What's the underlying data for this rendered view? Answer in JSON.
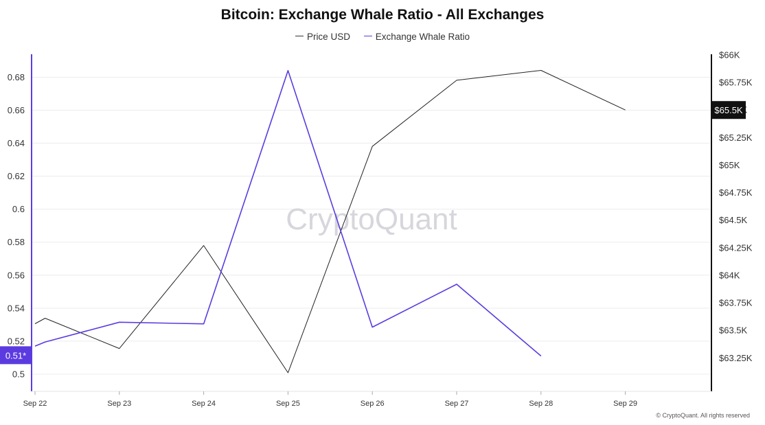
{
  "chart_data": {
    "type": "line",
    "title": "Bitcoin: Exchange Whale Ratio - All Exchanges",
    "categories": [
      "Sep 22",
      "Sep 23",
      "Sep 24",
      "Sep 25",
      "Sep 26",
      "Sep 27",
      "Sep 28",
      "Sep 29"
    ],
    "series": [
      {
        "name": "Price USD",
        "axis": "right",
        "color": "#222222",
        "points": [
          {
            "x": "Sep 22 00:00",
            "y": 63560
          },
          {
            "x": "Sep 22 12:00",
            "y": 63610
          },
          {
            "x": "Sep 23",
            "y": 63335
          },
          {
            "x": "Sep 24",
            "y": 64270
          },
          {
            "x": "Sep 25",
            "y": 63115
          },
          {
            "x": "Sep 26",
            "y": 65170
          },
          {
            "x": "Sep 27",
            "y": 65770
          },
          {
            "x": "Sep 28",
            "y": 65860
          },
          {
            "x": "Sep 29",
            "y": 65500
          }
        ]
      },
      {
        "name": "Exchange Whale Ratio",
        "axis": "left",
        "color": "#5b3be0",
        "points": [
          {
            "x": "Sep 22 00:00",
            "y": 0.517
          },
          {
            "x": "Sep 22 12:00",
            "y": 0.5195
          },
          {
            "x": "Sep 23",
            "y": 0.5315
          },
          {
            "x": "Sep 24",
            "y": 0.5305
          },
          {
            "x": "Sep 25",
            "y": 0.684
          },
          {
            "x": "Sep 26",
            "y": 0.5285
          },
          {
            "x": "Sep 27",
            "y": 0.5545
          },
          {
            "x": "Sep 28",
            "y": 0.511
          }
        ]
      }
    ],
    "y_left": {
      "ticks": [
        "0.5",
        "0.52",
        "0.54",
        "0.56",
        "0.58",
        "0.6",
        "0.62",
        "0.64",
        "0.66",
        "0.68"
      ],
      "range": [
        0.4925,
        0.6935
      ],
      "current_label": "0.51*",
      "current_value": 0.5115,
      "color": "#5b3be0"
    },
    "y_right": {
      "ticks": [
        "$63.25K",
        "$63.5K",
        "$63.75K",
        "$64K",
        "$64.25K",
        "$64.5K",
        "$64.75K",
        "$65K",
        "$65.25K",
        "$65.5K",
        "$65.75K",
        "$66K"
      ],
      "range": [
        62990,
        66000
      ],
      "current_label": "$65.5K",
      "current_value": 65500,
      "color": "#111111"
    },
    "grid": true,
    "legend_position": "top-center",
    "watermark": "CryptoQuant"
  },
  "footer": {
    "credit": "© CryptoQuant. All rights reserved"
  }
}
